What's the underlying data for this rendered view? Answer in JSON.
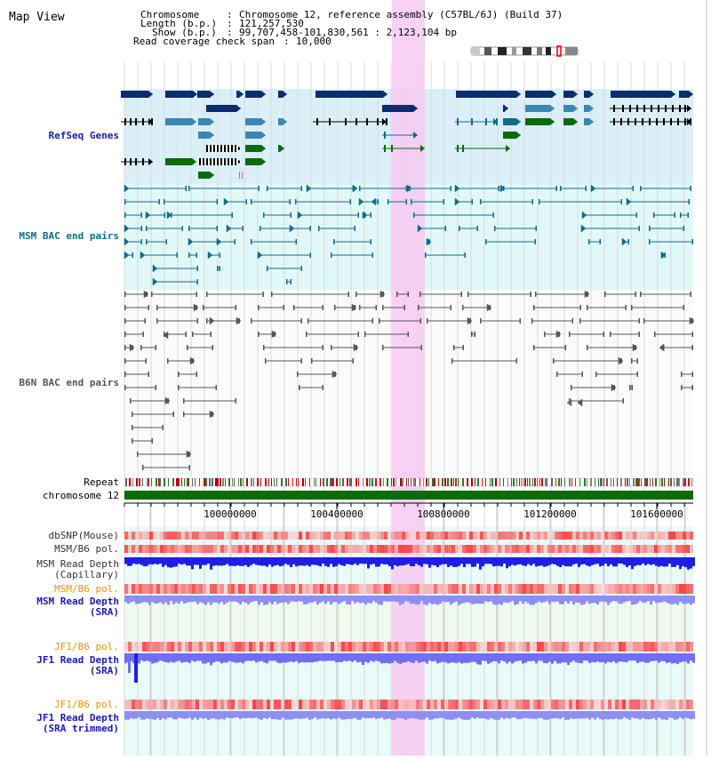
{
  "page_title": "Map View",
  "header": {
    "chromosome_key": "Chromosome",
    "chromosome_value": "Chromosome 12, reference assembly (C57BL/6J) (Build 37)",
    "length_key": "Length (b.p.)",
    "length_value": "121,257,530",
    "show_key": "Show (b.p.)",
    "show_value": "99,707,458-101,830,561 : 2,123,104 bp",
    "coverage_key": "Read coverage check span",
    "coverage_value": "10,000"
  },
  "tracks": {
    "refseq": "RefSeq Genes",
    "msm_bac": "MSM BAC end pairs",
    "b6n_bac": "B6N BAC end pairs",
    "repeat": "Repeat",
    "chromosome": "chromosome 12",
    "dbsnp": "dbSNP(Mouse)",
    "msm_b6_pol": "MSM/B6 pol.",
    "msm_depth_cap_1": "MSM Read Depth",
    "msm_depth_cap_2": "(Capillary)",
    "msm_b6_pol_sra": "MSM/B6 pol.",
    "msm_depth_sra_1": "MSM Read Depth",
    "msm_depth_sra_2": "(SRA)",
    "jf1_pol": "JF1/B6 pol.",
    "jf1_depth_1": "JF1 Read Depth",
    "jf1_depth_2": "(SRA)",
    "jf1_pol_trim": "JF1/B6 pol.",
    "jf1_trim_1": "JF1 Read Depth",
    "jf1_trim_2": "(SRA trimmed)"
  },
  "axis": {
    "tick_labels": [
      "100000000",
      "100400000",
      "100800000",
      "101200000",
      "101600000"
    ]
  },
  "colors": {
    "refseq_dark": "#0a2d6b",
    "refseq_mid": "#3a87b6",
    "refseq_green": "#0a6b0a",
    "msm_bac": "#0f6c8c",
    "b6n_bac": "#555555",
    "highlight": "#f7c9f2",
    "msm_depth": "#1e1ee6",
    "jf1_depth": "#6f6ff5",
    "label_orange": "#e69500",
    "label_blue": "#1a1ab3"
  }
}
